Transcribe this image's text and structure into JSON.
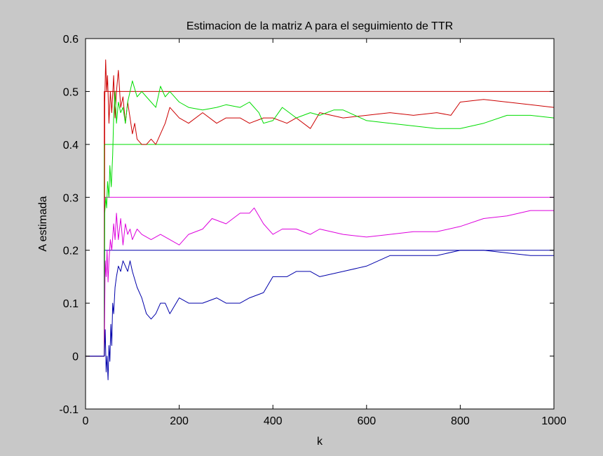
{
  "chart_data": {
    "type": "line",
    "title": "Estimacion de la matriz A para el seguimiento de TTR",
    "xlabel": "k",
    "ylabel": "A estimada",
    "xlim": [
      0,
      1000
    ],
    "ylim": [
      -0.1,
      0.6
    ],
    "xticks": [
      0,
      200,
      400,
      600,
      800,
      1000
    ],
    "xtick_labels": [
      "0",
      "200",
      "400",
      "600",
      "800",
      "1000"
    ],
    "yticks": [
      -0.1,
      0,
      0.1,
      0.2,
      0.3,
      0.4,
      0.5,
      0.6
    ],
    "ytick_labels": [
      "-0.1",
      "0",
      "0.1",
      "0.2",
      "0.3",
      "0.4",
      "0.5",
      "0.6"
    ],
    "grid": false,
    "legend": "none",
    "figure_background": "#c8c8c8",
    "axes_background": "#ffffff",
    "series": [
      {
        "color": "#cc0000",
        "style": "step",
        "x": [
          0,
          40,
          40,
          1000
        ],
        "y": [
          0,
          0,
          0.5,
          0.5
        ]
      },
      {
        "color": "#00dd00",
        "style": "step",
        "x": [
          0,
          40,
          40,
          1000
        ],
        "y": [
          0,
          0,
          0.4,
          0.4
        ]
      },
      {
        "color": "#dd00dd",
        "style": "step",
        "x": [
          0,
          40,
          40,
          1000
        ],
        "y": [
          0,
          0,
          0.3,
          0.3
        ]
      },
      {
        "color": "#0000aa",
        "style": "step",
        "x": [
          0,
          40,
          40,
          1000
        ],
        "y": [
          0,
          0,
          0.2,
          0.2
        ]
      },
      {
        "color": "#cc0000",
        "style": "line",
        "x": [
          0,
          40,
          41,
          43,
          45,
          47,
          50,
          53,
          56,
          60,
          63,
          66,
          70,
          75,
          80,
          85,
          90,
          95,
          100,
          105,
          110,
          120,
          130,
          140,
          150,
          160,
          170,
          180,
          200,
          220,
          250,
          280,
          300,
          330,
          350,
          380,
          400,
          430,
          450,
          480,
          500,
          550,
          600,
          650,
          700,
          750,
          780,
          800,
          850,
          900,
          950,
          1000
        ],
        "y": [
          0,
          0,
          0.48,
          0.56,
          0.5,
          0.53,
          0.44,
          0.5,
          0.46,
          0.53,
          0.45,
          0.5,
          0.54,
          0.47,
          0.49,
          0.44,
          0.48,
          0.45,
          0.42,
          0.44,
          0.41,
          0.4,
          0.4,
          0.41,
          0.4,
          0.42,
          0.44,
          0.47,
          0.45,
          0.44,
          0.46,
          0.44,
          0.45,
          0.45,
          0.44,
          0.45,
          0.45,
          0.44,
          0.45,
          0.43,
          0.46,
          0.45,
          0.455,
          0.46,
          0.455,
          0.46,
          0.455,
          0.48,
          0.485,
          0.48,
          0.475,
          0.47
        ]
      },
      {
        "color": "#00dd00",
        "style": "line",
        "x": [
          0,
          40,
          41,
          43,
          45,
          47,
          50,
          52,
          55,
          58,
          60,
          63,
          66,
          70,
          75,
          80,
          85,
          90,
          95,
          100,
          110,
          120,
          130,
          140,
          150,
          160,
          165,
          170,
          180,
          200,
          220,
          250,
          280,
          300,
          330,
          350,
          370,
          380,
          400,
          420,
          450,
          480,
          500,
          530,
          550,
          600,
          650,
          700,
          750,
          800,
          850,
          900,
          950,
          1000
        ],
        "y": [
          0,
          0,
          0.27,
          0.3,
          0.28,
          0.33,
          0.3,
          0.36,
          0.32,
          0.38,
          0.45,
          0.5,
          0.44,
          0.48,
          0.46,
          0.47,
          0.44,
          0.48,
          0.5,
          0.52,
          0.49,
          0.5,
          0.49,
          0.48,
          0.47,
          0.51,
          0.5,
          0.49,
          0.5,
          0.48,
          0.47,
          0.465,
          0.47,
          0.475,
          0.47,
          0.48,
          0.46,
          0.44,
          0.445,
          0.47,
          0.45,
          0.46,
          0.455,
          0.465,
          0.465,
          0.445,
          0.44,
          0.435,
          0.43,
          0.43,
          0.44,
          0.455,
          0.455,
          0.45
        ]
      },
      {
        "color": "#dd00dd",
        "style": "line",
        "x": [
          0,
          40,
          42,
          44,
          46,
          48,
          50,
          53,
          56,
          60,
          63,
          66,
          70,
          75,
          80,
          85,
          90,
          95,
          100,
          110,
          120,
          140,
          160,
          180,
          200,
          220,
          250,
          270,
          300,
          330,
          350,
          360,
          380,
          400,
          420,
          450,
          480,
          500,
          550,
          600,
          650,
          700,
          750,
          800,
          850,
          900,
          950,
          1000
        ],
        "y": [
          0,
          0,
          0.18,
          0.15,
          0.2,
          0.14,
          0.18,
          0.22,
          0.2,
          0.25,
          0.22,
          0.27,
          0.22,
          0.26,
          0.21,
          0.25,
          0.23,
          0.24,
          0.22,
          0.24,
          0.23,
          0.22,
          0.23,
          0.22,
          0.21,
          0.23,
          0.24,
          0.26,
          0.25,
          0.27,
          0.27,
          0.28,
          0.25,
          0.23,
          0.24,
          0.24,
          0.23,
          0.24,
          0.23,
          0.225,
          0.23,
          0.235,
          0.235,
          0.245,
          0.26,
          0.265,
          0.275,
          0.275
        ]
      },
      {
        "color": "#0000aa",
        "style": "line",
        "x": [
          0,
          40,
          42,
          44,
          46,
          48,
          50,
          52,
          54,
          56,
          58,
          60,
          63,
          66,
          70,
          75,
          80,
          85,
          90,
          95,
          100,
          110,
          120,
          130,
          140,
          150,
          160,
          170,
          180,
          200,
          220,
          250,
          280,
          300,
          330,
          350,
          380,
          400,
          430,
          450,
          480,
          500,
          550,
          600,
          650,
          700,
          750,
          800,
          850,
          900,
          950,
          1000
        ],
        "y": [
          0,
          0,
          0.05,
          -0.03,
          0.0,
          -0.045,
          0.02,
          -0.01,
          0.06,
          0.02,
          0.1,
          0.08,
          0.13,
          0.15,
          0.17,
          0.16,
          0.18,
          0.17,
          0.16,
          0.18,
          0.16,
          0.13,
          0.11,
          0.08,
          0.07,
          0.08,
          0.1,
          0.1,
          0.08,
          0.11,
          0.1,
          0.1,
          0.11,
          0.1,
          0.1,
          0.11,
          0.12,
          0.15,
          0.15,
          0.16,
          0.16,
          0.15,
          0.16,
          0.17,
          0.19,
          0.19,
          0.19,
          0.2,
          0.2,
          0.195,
          0.19,
          0.19
        ]
      }
    ]
  }
}
